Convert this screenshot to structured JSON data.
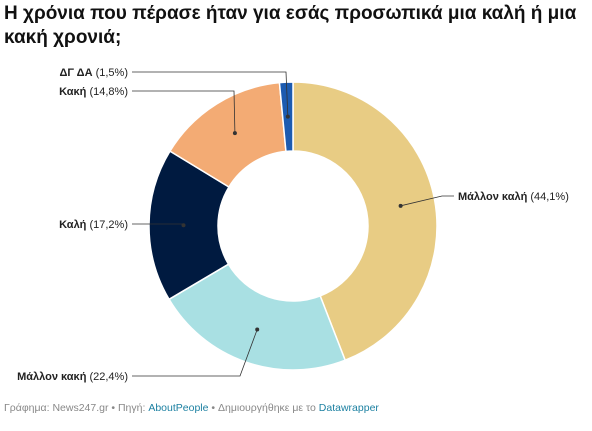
{
  "title": "Η χρόνια που πέρασε ήταν για εσάς προσωπικά μια καλή ή μια κακή χρονιά;",
  "footer": {
    "chart_prefix": "Γράφημα: ",
    "chart_by": "News247.gr",
    "sep1": " • Πηγή: ",
    "source": "AboutPeople",
    "sep2": " • Δημιουργήθηκε με το ",
    "tool": "Datawrapper"
  },
  "chart_data": {
    "type": "pie",
    "donut": true,
    "slices": [
      {
        "label": "Μάλλον καλή",
        "value": 44.1,
        "value_text": "(44,1%)",
        "color": "#e8cc84"
      },
      {
        "label": "Μάλλον κακή",
        "value": 22.4,
        "value_text": "(22,4%)",
        "color": "#a9e0e3"
      },
      {
        "label": "Καλή",
        "value": 17.2,
        "value_text": "(17,2%)",
        "color": "#001a40"
      },
      {
        "label": "Κακή",
        "value": 14.8,
        "value_text": "(14,8%)",
        "color": "#f3ab74"
      },
      {
        "label": "ΔΓ ΔΑ",
        "value": 1.5,
        "value_text": "(1,5%)",
        "color": "#1c5bb0"
      }
    ]
  }
}
